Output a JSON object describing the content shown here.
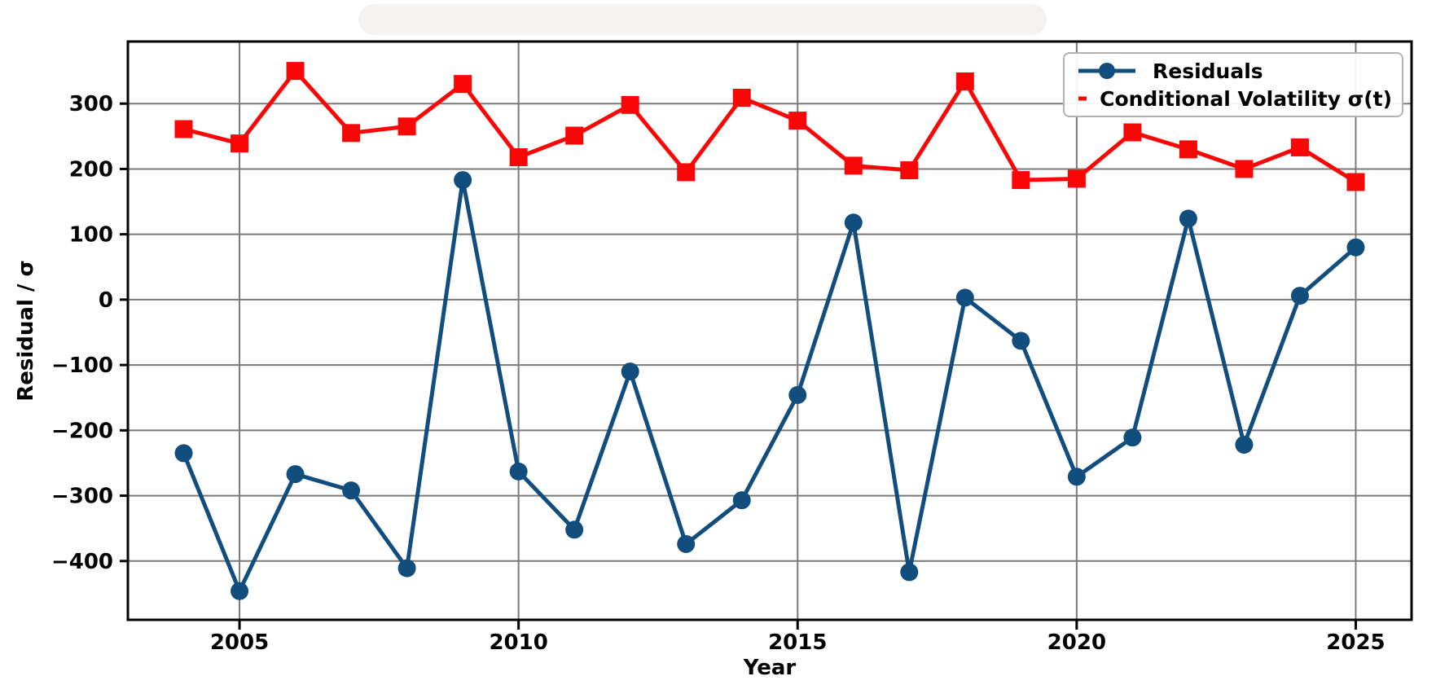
{
  "figure": {
    "background": "#ffffff",
    "title_strip_color": "#f4f3f1"
  },
  "chart_data": {
    "type": "line",
    "title": "",
    "xlabel": "Year",
    "ylabel": "Residual / σ",
    "x": [
      2004,
      2005,
      2006,
      2007,
      2008,
      2009,
      2010,
      2011,
      2012,
      2013,
      2014,
      2015,
      2016,
      2017,
      2018,
      2019,
      2020,
      2021,
      2022,
      2023,
      2024,
      2025
    ],
    "series": [
      {
        "name": "Residuals",
        "color": "#114e7d",
        "marker": "circle",
        "values": [
          -235,
          -446,
          -267,
          -292,
          -411,
          183,
          -263,
          -352,
          -110,
          -374,
          -307,
          -146,
          118,
          -417,
          3,
          -63,
          -271,
          -211,
          124,
          -222,
          6,
          80
        ]
      },
      {
        "name": "Conditional Volatility σ(t)",
        "color": "#fb0606",
        "marker": "square",
        "values": [
          261,
          239,
          350,
          255,
          265,
          330,
          218,
          251,
          298,
          195,
          309,
          274,
          205,
          198,
          334,
          183,
          185,
          256,
          230,
          200,
          233,
          180
        ]
      }
    ],
    "xlim": [
      2003,
      2026
    ],
    "ylim": [
      -490,
      395
    ],
    "xticks": [
      2005,
      2010,
      2015,
      2020,
      2025
    ],
    "yticks": [
      -400,
      -300,
      -200,
      -100,
      0,
      100,
      200,
      300
    ],
    "grid": true,
    "grid_color": "#7a7a7a",
    "axis_color": "#000000",
    "legend_position": "upper right"
  },
  "legend": {
    "items": [
      {
        "label": "Residuals"
      },
      {
        "label": "Conditional Volatility σ(t)"
      }
    ]
  }
}
